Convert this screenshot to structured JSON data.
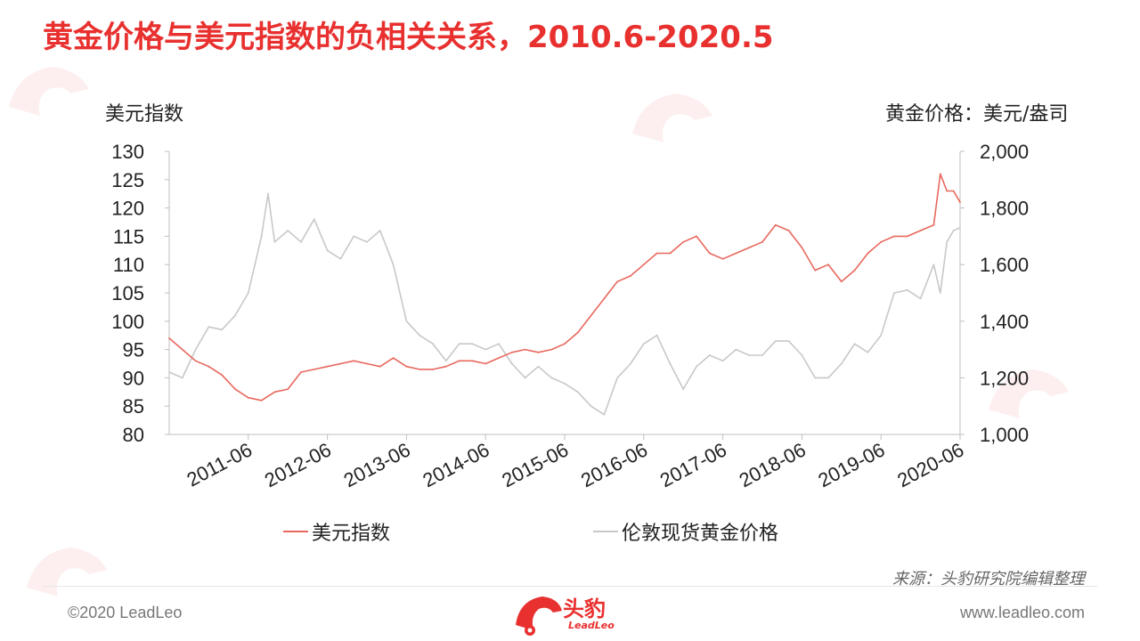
{
  "title": "黄金价格与美元指数的负相关关系，2010.6-2020.5",
  "left_axis_label": "美元指数",
  "right_axis_label": "黄金价格：美元/盎司",
  "source": "来源：头豹研究院编辑整理",
  "copyright": "©2020 LeadLeo",
  "website": "www.leadleo.com",
  "logo": {
    "text": "头豹",
    "sub": "LeadLeo"
  },
  "colors": {
    "usd": "#e8685e",
    "gold": "#c8c8c8",
    "title": "#e8302f"
  },
  "chart_data": {
    "type": "line",
    "x_ticks": [
      "2011-06",
      "2012-06",
      "2013-06",
      "2014-06",
      "2015-06",
      "2016-06",
      "2017-06",
      "2018-06",
      "2019-06",
      "2020-06"
    ],
    "x_range": [
      "2010-06",
      "2020-06"
    ],
    "y_left": {
      "label": "美元指数",
      "range": [
        80,
        130
      ],
      "ticks": [
        "130",
        "125",
        "120",
        "115",
        "110",
        "105",
        "100",
        "95",
        "90",
        "85",
        "80"
      ]
    },
    "y_right": {
      "label": "黄金价格：美元/盎司",
      "range": [
        1000,
        2000
      ],
      "ticks": [
        "2,000",
        "1,800",
        "1,600",
        "1,400",
        "1,200",
        "1,000"
      ]
    },
    "grid": false,
    "legend": "bottom",
    "series": [
      {
        "name": "美元指数",
        "axis": "left",
        "color": "#e8685e",
        "points": [
          [
            "2010-06",
            97
          ],
          [
            "2010-08",
            95
          ],
          [
            "2010-10",
            93
          ],
          [
            "2010-12",
            92
          ],
          [
            "2011-02",
            90.5
          ],
          [
            "2011-04",
            88
          ],
          [
            "2011-06",
            86.5
          ],
          [
            "2011-08",
            86
          ],
          [
            "2011-10",
            87.5
          ],
          [
            "2011-12",
            88
          ],
          [
            "2012-02",
            91
          ],
          [
            "2012-04",
            91.5
          ],
          [
            "2012-06",
            92
          ],
          [
            "2012-08",
            92.5
          ],
          [
            "2012-10",
            93
          ],
          [
            "2012-12",
            92.5
          ],
          [
            "2013-02",
            92
          ],
          [
            "2013-04",
            93.5
          ],
          [
            "2013-06",
            92
          ],
          [
            "2013-08",
            91.5
          ],
          [
            "2013-10",
            91.5
          ],
          [
            "2013-12",
            92
          ],
          [
            "2014-02",
            93
          ],
          [
            "2014-04",
            93
          ],
          [
            "2014-06",
            92.5
          ],
          [
            "2014-08",
            93.5
          ],
          [
            "2014-10",
            94.5
          ],
          [
            "2014-12",
            95
          ],
          [
            "2015-02",
            94.5
          ],
          [
            "2015-04",
            95
          ],
          [
            "2015-06",
            96
          ],
          [
            "2015-08",
            98
          ],
          [
            "2015-10",
            101
          ],
          [
            "2015-12",
            104
          ],
          [
            "2016-02",
            107
          ],
          [
            "2016-04",
            108
          ],
          [
            "2016-06",
            110
          ],
          [
            "2016-08",
            112
          ],
          [
            "2016-10",
            112
          ],
          [
            "2016-12",
            114
          ],
          [
            "2017-02",
            115
          ],
          [
            "2017-04",
            112
          ],
          [
            "2017-06",
            111
          ],
          [
            "2017-08",
            112
          ],
          [
            "2017-10",
            113
          ],
          [
            "2017-12",
            114
          ],
          [
            "2018-02",
            117
          ],
          [
            "2018-04",
            116
          ],
          [
            "2018-06",
            113
          ],
          [
            "2018-08",
            109
          ],
          [
            "2018-10",
            110
          ],
          [
            "2018-12",
            107
          ],
          [
            "2019-02",
            109
          ],
          [
            "2019-04",
            112
          ],
          [
            "2019-06",
            114
          ],
          [
            "2019-08",
            115
          ],
          [
            "2019-10",
            115
          ],
          [
            "2019-12",
            116
          ],
          [
            "2020-02",
            117
          ],
          [
            "2020-03",
            126
          ],
          [
            "2020-04",
            123
          ],
          [
            "2020-05",
            123
          ],
          [
            "2020-06",
            121
          ]
        ]
      },
      {
        "name": "伦敦现货黄金价格",
        "axis": "right",
        "color": "#c8c8c8",
        "points": [
          [
            "2010-06",
            1220
          ],
          [
            "2010-08",
            1200
          ],
          [
            "2010-10",
            1300
          ],
          [
            "2010-12",
            1380
          ],
          [
            "2011-02",
            1370
          ],
          [
            "2011-04",
            1420
          ],
          [
            "2011-06",
            1500
          ],
          [
            "2011-08",
            1700
          ],
          [
            "2011-09",
            1850
          ],
          [
            "2011-10",
            1680
          ],
          [
            "2011-12",
            1720
          ],
          [
            "2012-02",
            1680
          ],
          [
            "2012-04",
            1760
          ],
          [
            "2012-06",
            1650
          ],
          [
            "2012-08",
            1620
          ],
          [
            "2012-10",
            1700
          ],
          [
            "2012-12",
            1680
          ],
          [
            "2013-02",
            1720
          ],
          [
            "2013-04",
            1600
          ],
          [
            "2013-06",
            1400
          ],
          [
            "2013-08",
            1350
          ],
          [
            "2013-10",
            1320
          ],
          [
            "2013-12",
            1260
          ],
          [
            "2014-02",
            1320
          ],
          [
            "2014-04",
            1320
          ],
          [
            "2014-06",
            1300
          ],
          [
            "2014-08",
            1320
          ],
          [
            "2014-10",
            1250
          ],
          [
            "2014-12",
            1200
          ],
          [
            "2015-02",
            1240
          ],
          [
            "2015-04",
            1200
          ],
          [
            "2015-06",
            1180
          ],
          [
            "2015-08",
            1150
          ],
          [
            "2015-10",
            1100
          ],
          [
            "2015-12",
            1070
          ],
          [
            "2016-02",
            1200
          ],
          [
            "2016-04",
            1250
          ],
          [
            "2016-06",
            1320
          ],
          [
            "2016-08",
            1350
          ],
          [
            "2016-10",
            1250
          ],
          [
            "2016-12",
            1160
          ],
          [
            "2017-02",
            1240
          ],
          [
            "2017-04",
            1280
          ],
          [
            "2017-06",
            1260
          ],
          [
            "2017-08",
            1300
          ],
          [
            "2017-10",
            1280
          ],
          [
            "2017-12",
            1280
          ],
          [
            "2018-02",
            1330
          ],
          [
            "2018-04",
            1330
          ],
          [
            "2018-06",
            1280
          ],
          [
            "2018-08",
            1200
          ],
          [
            "2018-10",
            1200
          ],
          [
            "2018-12",
            1250
          ],
          [
            "2019-02",
            1320
          ],
          [
            "2019-04",
            1290
          ],
          [
            "2019-06",
            1350
          ],
          [
            "2019-08",
            1500
          ],
          [
            "2019-10",
            1510
          ],
          [
            "2019-12",
            1480
          ],
          [
            "2020-02",
            1600
          ],
          [
            "2020-03",
            1500
          ],
          [
            "2020-04",
            1680
          ],
          [
            "2020-05",
            1720
          ],
          [
            "2020-06",
            1730
          ]
        ]
      }
    ]
  }
}
